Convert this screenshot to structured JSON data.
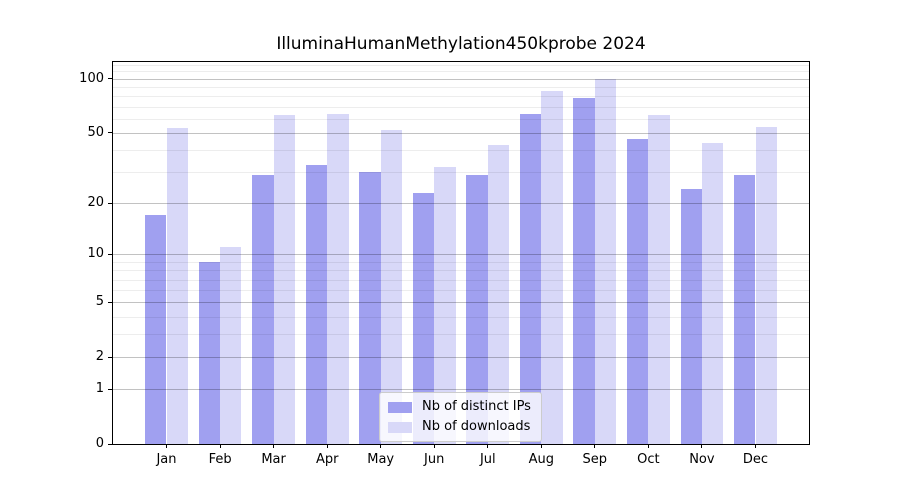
{
  "chart_data": {
    "type": "bar",
    "title": "IlluminaHumanMethylation450kprobe 2024",
    "categories": [
      "Jan",
      "Feb",
      "Mar",
      "Apr",
      "May",
      "Jun",
      "Jul",
      "Aug",
      "Sep",
      "Oct",
      "Nov",
      "Dec"
    ],
    "year_label": "2024",
    "series": [
      {
        "name": "Nb of distinct IPs",
        "color": "#a0a0f0",
        "values": [
          17,
          9,
          29,
          33,
          30,
          23,
          29,
          64,
          78,
          46,
          24,
          29
        ]
      },
      {
        "name": "Nb of downloads",
        "color": "#d8d8f8",
        "values": [
          53,
          11,
          63,
          64,
          52,
          32,
          43,
          86,
          100,
          63,
          44,
          54
        ]
      }
    ],
    "y_axis": {
      "scale": "log10(1+x)",
      "ticks": [
        0,
        1,
        2,
        5,
        10,
        20,
        50,
        100
      ],
      "minor_ticks": [
        3,
        4,
        6,
        7,
        8,
        9,
        30,
        40,
        60,
        70,
        80,
        90,
        110,
        120
      ],
      "max": 124
    },
    "x_axis": {
      "tick_label_lines": 2
    },
    "legend": {
      "position": "bottom-center"
    },
    "grid": "on, drawn over bars with transparency",
    "colors": {
      "background": "#ffffff",
      "axis": "#000000",
      "major_grid": "rgba(0,0,0,0.24)",
      "minor_grid": "rgba(0,0,0,0.07)",
      "legend_border": "#cccccc"
    }
  }
}
